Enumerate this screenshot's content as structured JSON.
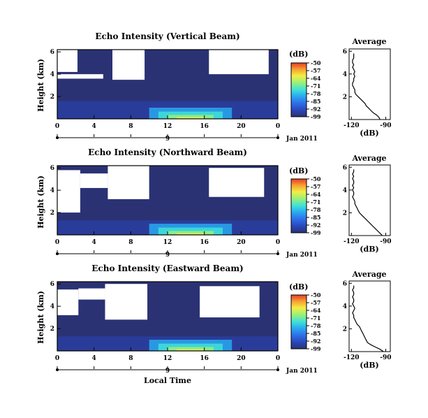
{
  "chart_data": [
    {
      "type": "heatmap",
      "title": "Echo Intensity (Vertical Beam)",
      "ylabel": "Height (km)",
      "xlabel": "",
      "x_ticks": [
        "0",
        "4",
        "8",
        "12",
        "16",
        "20",
        "0"
      ],
      "y_ticks": [
        "2",
        "4",
        "6"
      ],
      "xlim": [
        0,
        24
      ],
      "ylim": [
        0,
        6.2
      ],
      "date_label": "9",
      "date_suffix": "Jan 2011",
      "colorbar": {
        "unit": "(dB)",
        "ticks": [
          "-50",
          "-57",
          "-64",
          "-71",
          "-78",
          "-85",
          "-92",
          "-99"
        ],
        "range": [
          -99,
          -50
        ]
      },
      "profile": {
        "title": "Average",
        "xlabel": "(dB)",
        "x_ticks": [
          "-120",
          "-90"
        ],
        "y_ticks": [
          "2",
          "4",
          "6"
        ],
        "xlim": [
          -122,
          -86
        ],
        "ylim": [
          0,
          6.2
        ],
        "x": [
          -95,
          -96,
          -98,
          -101,
          -103,
          -105,
          -107,
          -108,
          -110,
          -112,
          -114,
          -116,
          -117,
          -117,
          -118,
          -119,
          -119,
          -118,
          -118,
          -117,
          -118,
          -117,
          -118,
          -119,
          -118,
          -119,
          -119,
          -118,
          -118,
          -118
        ],
        "y": [
          0.0,
          0.2,
          0.4,
          0.6,
          0.8,
          1.0,
          1.2,
          1.4,
          1.6,
          1.8,
          2.0,
          2.2,
          2.4,
          2.6,
          2.8,
          3.0,
          3.2,
          3.4,
          3.6,
          3.8,
          4.0,
          4.2,
          4.4,
          4.6,
          4.8,
          5.0,
          5.2,
          5.4,
          5.6,
          5.8
        ]
      }
    },
    {
      "type": "heatmap",
      "title": "Echo Intensity (Northward Beam)",
      "ylabel": "Height (km)",
      "xlabel": "",
      "x_ticks": [
        "0",
        "4",
        "8",
        "12",
        "16",
        "20",
        "0"
      ],
      "y_ticks": [
        "2",
        "4",
        "6"
      ],
      "xlim": [
        0,
        24
      ],
      "ylim": [
        0,
        6.2
      ],
      "date_label": "9",
      "date_suffix": "Jan 2011",
      "colorbar": {
        "unit": "(dB)",
        "ticks": [
          "-50",
          "-57",
          "-64",
          "-71",
          "-78",
          "-85",
          "-92",
          "-99"
        ],
        "range": [
          -99,
          -50
        ]
      },
      "profile": {
        "title": "Average",
        "xlabel": "(dB)",
        "x_ticks": [
          "-120",
          "-90"
        ],
        "y_ticks": [
          "2",
          "4",
          "6"
        ],
        "xlim": [
          -122,
          -86
        ],
        "ylim": [
          0,
          6.2
        ],
        "x": [
          -93,
          -95,
          -97,
          -99,
          -101,
          -103,
          -105,
          -107,
          -109,
          -111,
          -113,
          -114,
          -115,
          -116,
          -117,
          -117,
          -118,
          -119,
          -118,
          -118,
          -119,
          -118,
          -119,
          -118,
          -118,
          -119,
          -118,
          -119,
          -118,
          -118
        ],
        "y": [
          0.0,
          0.2,
          0.4,
          0.6,
          0.8,
          1.0,
          1.2,
          1.4,
          1.6,
          1.8,
          2.0,
          2.2,
          2.4,
          2.6,
          2.8,
          3.0,
          3.2,
          3.4,
          3.6,
          3.8,
          4.0,
          4.2,
          4.4,
          4.6,
          4.8,
          5.0,
          5.2,
          5.4,
          5.6,
          5.8
        ]
      }
    },
    {
      "type": "heatmap",
      "title": "Echo Intensity (Eastward Beam)",
      "ylabel": "Height (km)",
      "xlabel": "Local Time",
      "x_ticks": [
        "0",
        "4",
        "8",
        "12",
        "16",
        "20",
        "0"
      ],
      "y_ticks": [
        "2",
        "4",
        "6"
      ],
      "xlim": [
        0,
        24
      ],
      "ylim": [
        0,
        6.2
      ],
      "date_label": "9",
      "date_suffix": "Jan 2011",
      "colorbar": {
        "unit": "(dB)",
        "ticks": [
          "-50",
          "-57",
          "-64",
          "-71",
          "-78",
          "-85",
          "-92",
          "-99"
        ],
        "range": [
          -99,
          -50
        ]
      },
      "profile": {
        "title": "Average",
        "xlabel": "(dB)",
        "x_ticks": [
          "-120",
          "-90"
        ],
        "y_ticks": [
          "2",
          "4",
          "6"
        ],
        "xlim": [
          -122,
          -86
        ],
        "ylim": [
          0,
          6.2
        ],
        "x": [
          -92,
          -95,
          -99,
          -103,
          -106,
          -107,
          -108,
          -109,
          -110,
          -111,
          -112,
          -113,
          -115,
          -116,
          -117,
          -118,
          -118,
          -119,
          -118,
          -117,
          -118,
          -119,
          -118,
          -118,
          -119,
          -118,
          -118,
          -119,
          -118,
          -118
        ],
        "y": [
          0.0,
          0.2,
          0.4,
          0.6,
          0.8,
          1.0,
          1.2,
          1.4,
          1.6,
          1.8,
          2.0,
          2.2,
          2.4,
          2.6,
          2.8,
          3.0,
          3.2,
          3.4,
          3.6,
          3.8,
          4.0,
          4.2,
          4.4,
          4.6,
          4.8,
          5.0,
          5.2,
          5.4,
          5.6,
          5.8
        ]
      }
    }
  ],
  "colors": {
    "background_echo": "#2b3274",
    "colormap": [
      "#2b3274",
      "#2a46b8",
      "#2f6ee8",
      "#29a8f0",
      "#3fe0d8",
      "#98f07a",
      "#f2ee44",
      "#f6a233",
      "#e83b22"
    ]
  }
}
